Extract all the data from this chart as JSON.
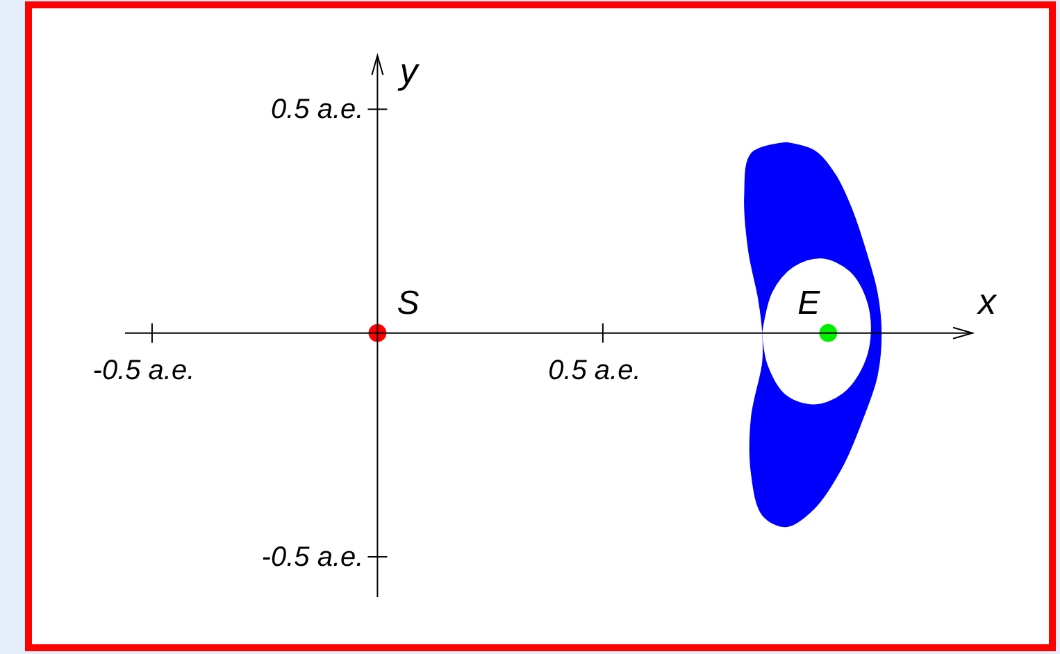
{
  "chart_data": {
    "type": "scatter",
    "xlabel": "x",
    "ylabel": "y",
    "xlim": [
      -0.56,
      1.32
    ],
    "ylim": [
      -0.59,
      0.62
    ],
    "xticks": [
      {
        "value": -0.5,
        "label": "-0.5 a.e."
      },
      {
        "value": 0.5,
        "label": "0.5 a.e."
      }
    ],
    "yticks": [
      {
        "value": -0.5,
        "label": "-0.5 a.e."
      },
      {
        "value": 0.5,
        "label": "0.5 a.e."
      }
    ],
    "marker": "circle",
    "series": [
      {
        "type": "area",
        "marker": "none",
        "color": "#0000ff",
        "x": [
          0.907,
          0.969,
          1.015,
          1.052,
          1.083,
          1.108,
          1.117,
          1.108,
          1.077,
          1.031,
          0.969,
          0.907,
          0.855,
          0.83,
          0.83,
          0.855,
          0.855,
          0.846,
          0.824,
          0.815,
          0.83,
          0.907
        ],
        "values": [
          0.425,
          0.407,
          0.354,
          0.276,
          0.183,
          0.09,
          0,
          -0.096,
          -0.189,
          -0.298,
          -0.391,
          -0.432,
          -0.407,
          -0.314,
          -0.189,
          -0.065,
          0,
          0.075,
          0.183,
          0.307,
          0.401,
          0.425
        ]
      },
      {
        "type": "area",
        "marker": "none",
        "color": "#ffffff",
        "x": [
          0.855,
          0.877,
          0.923,
          0.985,
          1.046,
          1.083,
          1.093,
          1.077,
          1.031,
          0.969,
          0.907,
          0.867,
          0.855
        ],
        "values": [
          0,
          0.09,
          0.146,
          0.165,
          0.137,
          0.075,
          0,
          -0.071,
          -0.134,
          -0.158,
          -0.137,
          -0.071,
          0
        ]
      },
      {
        "name": "S",
        "color": "#ff0000",
        "x": [
          0
        ],
        "values": [
          0
        ]
      },
      {
        "name": "E",
        "color": "#00ee00",
        "x": [
          1.0
        ],
        "values": [
          0
        ]
      }
    ]
  }
}
